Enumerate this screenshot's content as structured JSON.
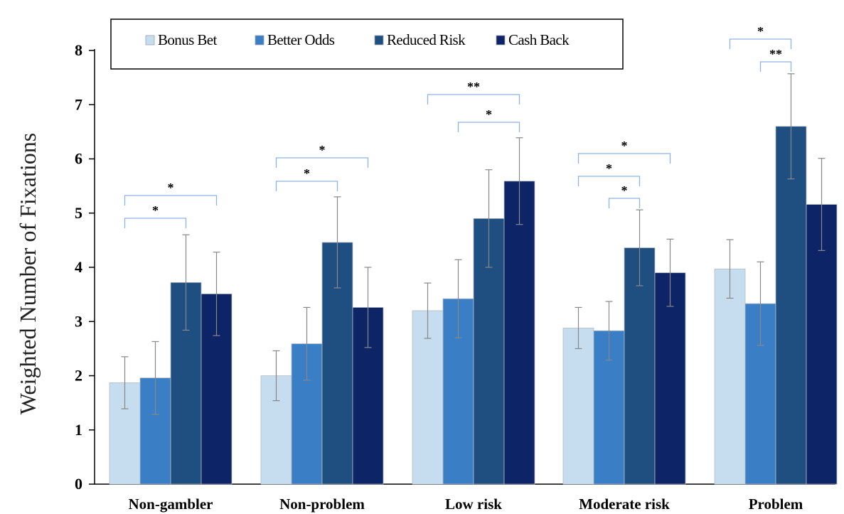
{
  "chart_data": {
    "type": "bar",
    "title": "",
    "xlabel": "",
    "ylabel": "Weighted Number of Fixations",
    "ylim": [
      0,
      8
    ],
    "yticks": [
      "0",
      "1",
      "2",
      "3",
      "4",
      "5",
      "6",
      "7",
      "8"
    ],
    "grid": false,
    "legend_position": "top",
    "categories": [
      "Non-gambler",
      "Non-problem",
      "Low risk",
      "Moderate risk",
      "Problem"
    ],
    "series": [
      {
        "name": "Bonus Bet",
        "color": "#c6dcef",
        "values": [
          1.87,
          2.0,
          3.2,
          2.88,
          3.97
        ],
        "errors": [
          0.48,
          0.46,
          0.51,
          0.38,
          0.54
        ]
      },
      {
        "name": "Better Odds",
        "color": "#3a7ec6",
        "values": [
          1.96,
          2.59,
          3.42,
          2.83,
          3.33
        ],
        "errors": [
          0.67,
          0.67,
          0.72,
          0.54,
          0.77
        ]
      },
      {
        "name": "Reduced Risk",
        "color": "#1f4e80",
        "values": [
          3.72,
          4.46,
          4.9,
          4.36,
          6.6
        ],
        "errors": [
          0.88,
          0.84,
          0.9,
          0.7,
          0.97
        ]
      },
      {
        "name": "Cash Back",
        "color": "#0d2466",
        "values": [
          3.51,
          3.26,
          5.59,
          3.9,
          5.16
        ],
        "errors": [
          0.77,
          0.74,
          0.8,
          0.62,
          0.85
        ]
      }
    ],
    "significance": [
      {
        "category": 0,
        "from_series": 0,
        "to_series": 2,
        "label": "*"
      },
      {
        "category": 0,
        "from_series": 0,
        "to_series": 3,
        "label": "*"
      },
      {
        "category": 1,
        "from_series": 0,
        "to_series": 2,
        "label": "*"
      },
      {
        "category": 1,
        "from_series": 0,
        "to_series": 3,
        "label": "*"
      },
      {
        "category": 2,
        "from_series": 0,
        "to_series": 3,
        "label": "**"
      },
      {
        "category": 2,
        "from_series": 1,
        "to_series": 3,
        "label": "*"
      },
      {
        "category": 3,
        "from_series": 0,
        "to_series": 3,
        "label": "*"
      },
      {
        "category": 3,
        "from_series": 0,
        "to_series": 2,
        "label": "*"
      },
      {
        "category": 3,
        "from_series": 1,
        "to_series": 2,
        "label": "*"
      },
      {
        "category": 4,
        "from_series": 0,
        "to_series": 2,
        "label": "*"
      },
      {
        "category": 4,
        "from_series": 1,
        "to_series": 2,
        "label": "**"
      }
    ]
  }
}
